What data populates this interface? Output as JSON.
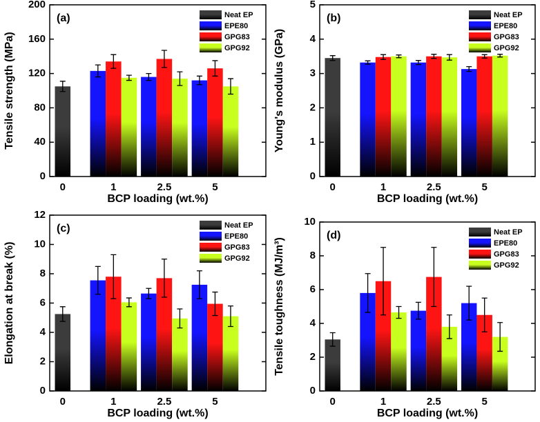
{
  "chart_data": [
    {
      "type": "bar",
      "panel_label": "(a)",
      "x_label": "BCP loading (wt.%)",
      "y_label": "Tensile strength (MPa)",
      "categories": [
        "0",
        "1",
        "2.5",
        "5"
      ],
      "ylim": [
        0,
        200
      ],
      "yticks": [
        0,
        40,
        80,
        120,
        160,
        200
      ],
      "legend": "upper right",
      "series": [
        {
          "name": "Neat EP",
          "color": "#3c3c3c",
          "values": [
            105,
            null,
            null,
            null
          ],
          "errors": [
            6,
            null,
            null,
            null
          ]
        },
        {
          "name": "EPE80",
          "color": "#1414ff",
          "values": [
            null,
            123,
            116,
            112
          ],
          "errors": [
            null,
            7,
            4,
            5
          ]
        },
        {
          "name": "GPG83",
          "color": "#ff1414",
          "values": [
            null,
            134,
            137,
            126
          ],
          "errors": [
            null,
            8,
            10,
            9
          ]
        },
        {
          "name": "GPG92",
          "color": "#c8ff1e",
          "values": [
            null,
            115,
            114,
            105
          ],
          "errors": [
            null,
            3,
            8,
            9
          ]
        }
      ]
    },
    {
      "type": "bar",
      "panel_label": "(b)",
      "x_label": "BCP loading (wt.%)",
      "y_label": "Young's modulus (GPa)",
      "categories": [
        "0",
        "1",
        "2.5",
        "5"
      ],
      "ylim": [
        0,
        5
      ],
      "yticks": [
        0,
        1,
        2,
        3,
        4,
        5
      ],
      "legend": "upper right",
      "series": [
        {
          "name": "Neat EP",
          "color": "#3c3c3c",
          "values": [
            3.45,
            null,
            null,
            null
          ],
          "errors": [
            0.07,
            null,
            null,
            null
          ]
        },
        {
          "name": "EPE80",
          "color": "#1414ff",
          "values": [
            null,
            3.32,
            3.32,
            3.13
          ],
          "errors": [
            null,
            0.05,
            0.06,
            0.07
          ]
        },
        {
          "name": "GPG83",
          "color": "#ff1414",
          "values": [
            null,
            3.48,
            3.5,
            3.5
          ],
          "errors": [
            null,
            0.07,
            0.06,
            0.05
          ]
        },
        {
          "name": "GPG92",
          "color": "#c8ff1e",
          "values": [
            null,
            3.5,
            3.47,
            3.52
          ],
          "errors": [
            null,
            0.04,
            0.08,
            0.04
          ]
        }
      ]
    },
    {
      "type": "bar",
      "panel_label": "(c)",
      "x_label": "BCP loading (wt.%)",
      "y_label": "Elongation at break (%)",
      "categories": [
        "0",
        "1",
        "2.5",
        "5"
      ],
      "ylim": [
        0,
        12
      ],
      "yticks": [
        0,
        2,
        4,
        6,
        8,
        10,
        12
      ],
      "legend": "upper right",
      "series": [
        {
          "name": "Neat EP",
          "color": "#3c3c3c",
          "values": [
            5.25,
            null,
            null,
            null
          ],
          "errors": [
            0.5,
            null,
            null,
            null
          ]
        },
        {
          "name": "EPE80",
          "color": "#1414ff",
          "values": [
            null,
            7.55,
            6.65,
            7.25
          ],
          "errors": [
            null,
            0.95,
            0.35,
            0.95
          ]
        },
        {
          "name": "GPG83",
          "color": "#ff1414",
          "values": [
            null,
            7.8,
            7.7,
            5.95
          ],
          "errors": [
            null,
            1.5,
            1.3,
            0.8
          ]
        },
        {
          "name": "GPG92",
          "color": "#c8ff1e",
          "values": [
            null,
            6.05,
            4.95,
            5.1
          ],
          "errors": [
            null,
            0.3,
            0.65,
            0.7
          ]
        }
      ]
    },
    {
      "type": "bar",
      "panel_label": "(d)",
      "x_label": "BCP loading (wt.%)",
      "y_label": "Tensile toughness (MJ/m³)",
      "categories": [
        "0",
        "1",
        "2.5",
        "5"
      ],
      "ylim": [
        0,
        10
      ],
      "yticks": [
        0,
        2,
        4,
        6,
        8,
        10
      ],
      "legend": "upper right",
      "series": [
        {
          "name": "Neat EP",
          "color": "#3c3c3c",
          "values": [
            3.05,
            null,
            null,
            null
          ],
          "errors": [
            0.4,
            null,
            null,
            null
          ]
        },
        {
          "name": "EPE80",
          "color": "#1414ff",
          "values": [
            null,
            5.8,
            4.75,
            5.2
          ],
          "errors": [
            null,
            1.15,
            0.5,
            1.0
          ]
        },
        {
          "name": "GPG83",
          "color": "#ff1414",
          "values": [
            null,
            6.5,
            6.75,
            4.5
          ],
          "errors": [
            null,
            2.0,
            1.75,
            1.0
          ]
        },
        {
          "name": "GPG92",
          "color": "#c8ff1e",
          "values": [
            null,
            4.65,
            3.8,
            3.2
          ],
          "errors": [
            null,
            0.35,
            0.7,
            0.85
          ]
        }
      ]
    }
  ]
}
